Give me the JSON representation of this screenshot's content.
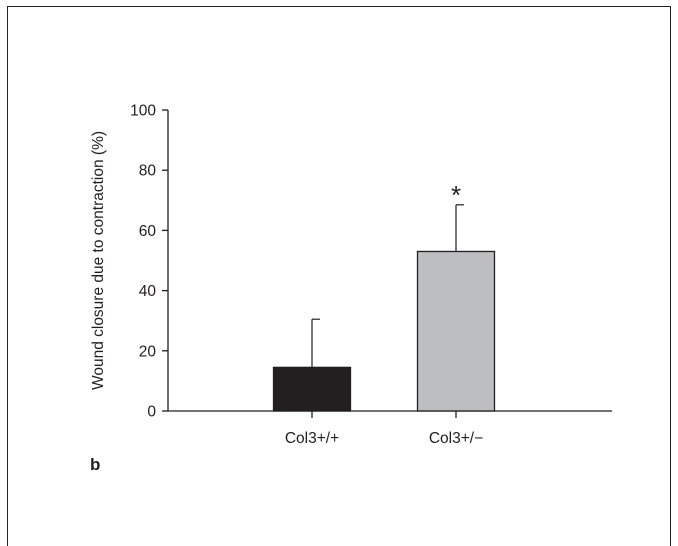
{
  "panel_label": "b",
  "chart_data": {
    "type": "bar",
    "categories": [
      "Col3+/+",
      "Col3+/−"
    ],
    "values": [
      14.5,
      53
    ],
    "errors": [
      16,
      15.5
    ],
    "bar_colors": [
      "#231f20",
      "#bcbec0"
    ],
    "ylabel": "Wound closure due to contraction (%)",
    "ylim": [
      0,
      100
    ],
    "yticks": [
      0,
      20,
      40,
      60,
      80,
      100
    ],
    "annotations": [
      {
        "category": "Col3+/−",
        "text": "*"
      }
    ]
  }
}
